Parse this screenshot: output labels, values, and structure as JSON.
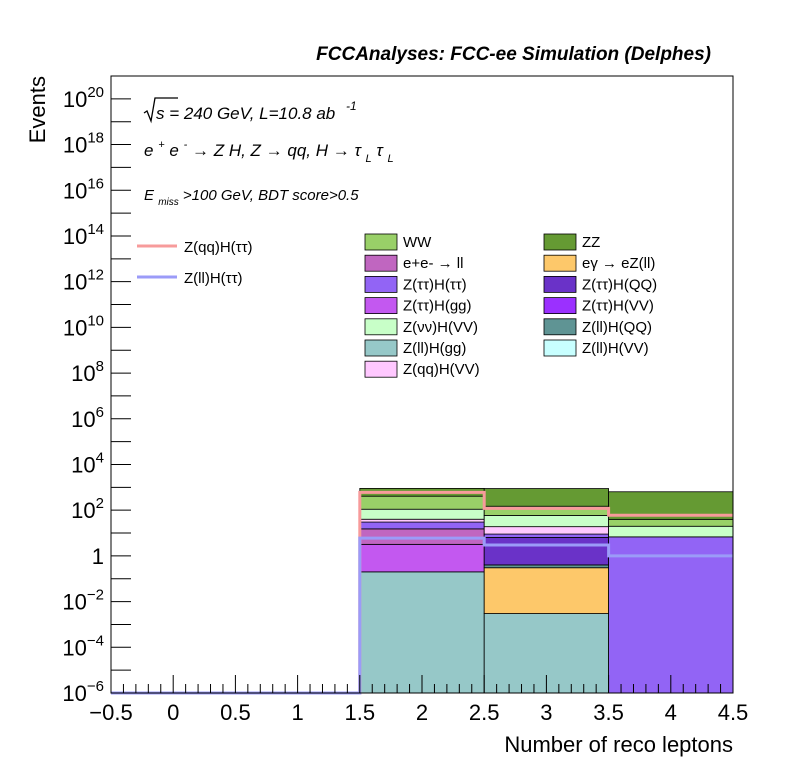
{
  "chart_data": {
    "type": "bar",
    "header": "FCCAnalyses: FCC-ee Simulation (Delphes)",
    "xlabel": "Number of reco leptons",
    "ylabel": "Events",
    "xlim": [
      -0.5,
      4.5
    ],
    "ylim": [
      1e-06,
      1e+21
    ],
    "log_y": true,
    "grid": false,
    "x_ticks": [
      "−0.5",
      "0",
      "0.5",
      "1",
      "1.5",
      "2",
      "2.5",
      "3",
      "3.5",
      "4",
      "4.5"
    ],
    "x_tick_values": [
      -0.5,
      0,
      0.5,
      1,
      1.5,
      2,
      2.5,
      3,
      3.5,
      4,
      4.5
    ],
    "y_ticks": [
      {
        "value": 1e-06,
        "base": "10",
        "exp": "−6"
      },
      {
        "value": 0.0001,
        "base": "10",
        "exp": "−4"
      },
      {
        "value": 0.01,
        "base": "10",
        "exp": "−2"
      },
      {
        "value": 1,
        "base": "1",
        "exp": ""
      },
      {
        "value": 100.0,
        "base": "10",
        "exp": "2"
      },
      {
        "value": 10000.0,
        "base": "10",
        "exp": "4"
      },
      {
        "value": 1000000.0,
        "base": "10",
        "exp": "6"
      },
      {
        "value": 100000000.0,
        "base": "10",
        "exp": "8"
      },
      {
        "value": 10000000000.0,
        "base": "10",
        "exp": "10"
      },
      {
        "value": 1000000000000.0,
        "base": "10",
        "exp": "12"
      },
      {
        "value": 100000000000000.0,
        "base": "10",
        "exp": "14"
      },
      {
        "value": 1e+16,
        "base": "10",
        "exp": "16"
      },
      {
        "value": 1e+18,
        "base": "10",
        "exp": "18"
      },
      {
        "value": 1e+20,
        "base": "10",
        "exp": "20"
      }
    ],
    "annotations": {
      "sqrt_s": "s = 240 GeV, L=10.8 ab",
      "lumi_exp": "-1",
      "process_a": "e",
      "process_b": " → Z H, Z  → qq, H  → τ",
      "process_sub": "L",
      "cut_a": "E",
      "cut_sub": "miss",
      "cut_b": ">100 GeV, BDT score>0.5"
    },
    "bin_edges": [
      1.5,
      2.5,
      3.5,
      4.5
    ],
    "stack_order_bottom_to_top": [
      "Z(ll)H(gg)",
      "eγ → eZ(ll)",
      "Z(ll)H(QQ)",
      "Z(ττ)H(VV)",
      "Z(ττ)H(gg)",
      "e+e- → ll",
      "Z(ττ)H(QQ)",
      "Z(ττ)H(ττ)",
      "Z(ll)H(VV)",
      "Z(qq)H(VV)",
      "Z(νν)H(VV)",
      "WW",
      "ZZ"
    ],
    "series": [
      {
        "name": "Z(ll)H(gg)",
        "color": "#96c8c8",
        "values": [
          0.2,
          0.003,
          0
        ]
      },
      {
        "name": "eγ → eZ(ll)",
        "color": "#fdc86a",
        "values": [
          0,
          0.3,
          0
        ]
      },
      {
        "name": "Z(ll)H(QQ)",
        "color": "#5f9494",
        "values": [
          0,
          0.1,
          0
        ]
      },
      {
        "name": "Z(ττ)H(VV)",
        "color": "#9b30ff",
        "values": [
          0,
          0,
          0
        ]
      },
      {
        "name": "Z(ττ)H(gg)",
        "color": "#c358f0",
        "values": [
          3,
          0,
          0
        ]
      },
      {
        "name": "e+e- → ll",
        "color": "#c066c0",
        "values": [
          12,
          0,
          0
        ]
      },
      {
        "name": "Z(ττ)H(QQ)",
        "color": "#6a32c8",
        "values": [
          0,
          6,
          0
        ]
      },
      {
        "name": "Z(ττ)H(ττ)",
        "color": "#9264f5",
        "values": [
          15,
          2.6,
          6.8
        ]
      },
      {
        "name": "Z(ll)H(VV)",
        "color": "#c8ffff",
        "values": [
          0,
          0,
          0
        ]
      },
      {
        "name": "Z(qq)H(VV)",
        "color": "#ffc8ff",
        "values": [
          10,
          10,
          0
        ]
      },
      {
        "name": "Z(νν)H(VV)",
        "color": "#c8ffc8",
        "values": [
          70,
          40,
          13
        ]
      },
      {
        "name": "WW",
        "color": "#99d068",
        "values": [
          300,
          90,
          20
        ]
      },
      {
        "name": "ZZ",
        "color": "#659a33",
        "values": [
          488,
          735,
          600
        ]
      }
    ],
    "overlays": [
      {
        "name": "Z(qq)H(ττ)",
        "color": "#f79b9b",
        "values": [
          600,
          120,
          60
        ],
        "underflow": 1e-06
      },
      {
        "name": "Z(ll)H(ττ)",
        "color": "#9b9bf8",
        "values": [
          6,
          3,
          1
        ],
        "underflow": 1e-06
      }
    ],
    "legend_left": [
      "Z(qq)H(ττ)",
      "Z(ll)H(ττ)"
    ],
    "legend_grid": [
      [
        "WW",
        "ZZ"
      ],
      [
        "e+e- → ll",
        "eγ → eZ(ll)"
      ],
      [
        "Z(ττ)H(ττ)",
        "Z(ττ)H(QQ)"
      ],
      [
        "Z(ττ)H(gg)",
        "Z(ττ)H(VV)"
      ],
      [
        "Z(νν)H(VV)",
        "Z(ll)H(QQ)"
      ],
      [
        "Z(ll)H(gg)",
        "Z(ll)H(VV)"
      ],
      [
        "Z(qq)H(VV)",
        null
      ]
    ],
    "legend_placement": "top-right"
  }
}
